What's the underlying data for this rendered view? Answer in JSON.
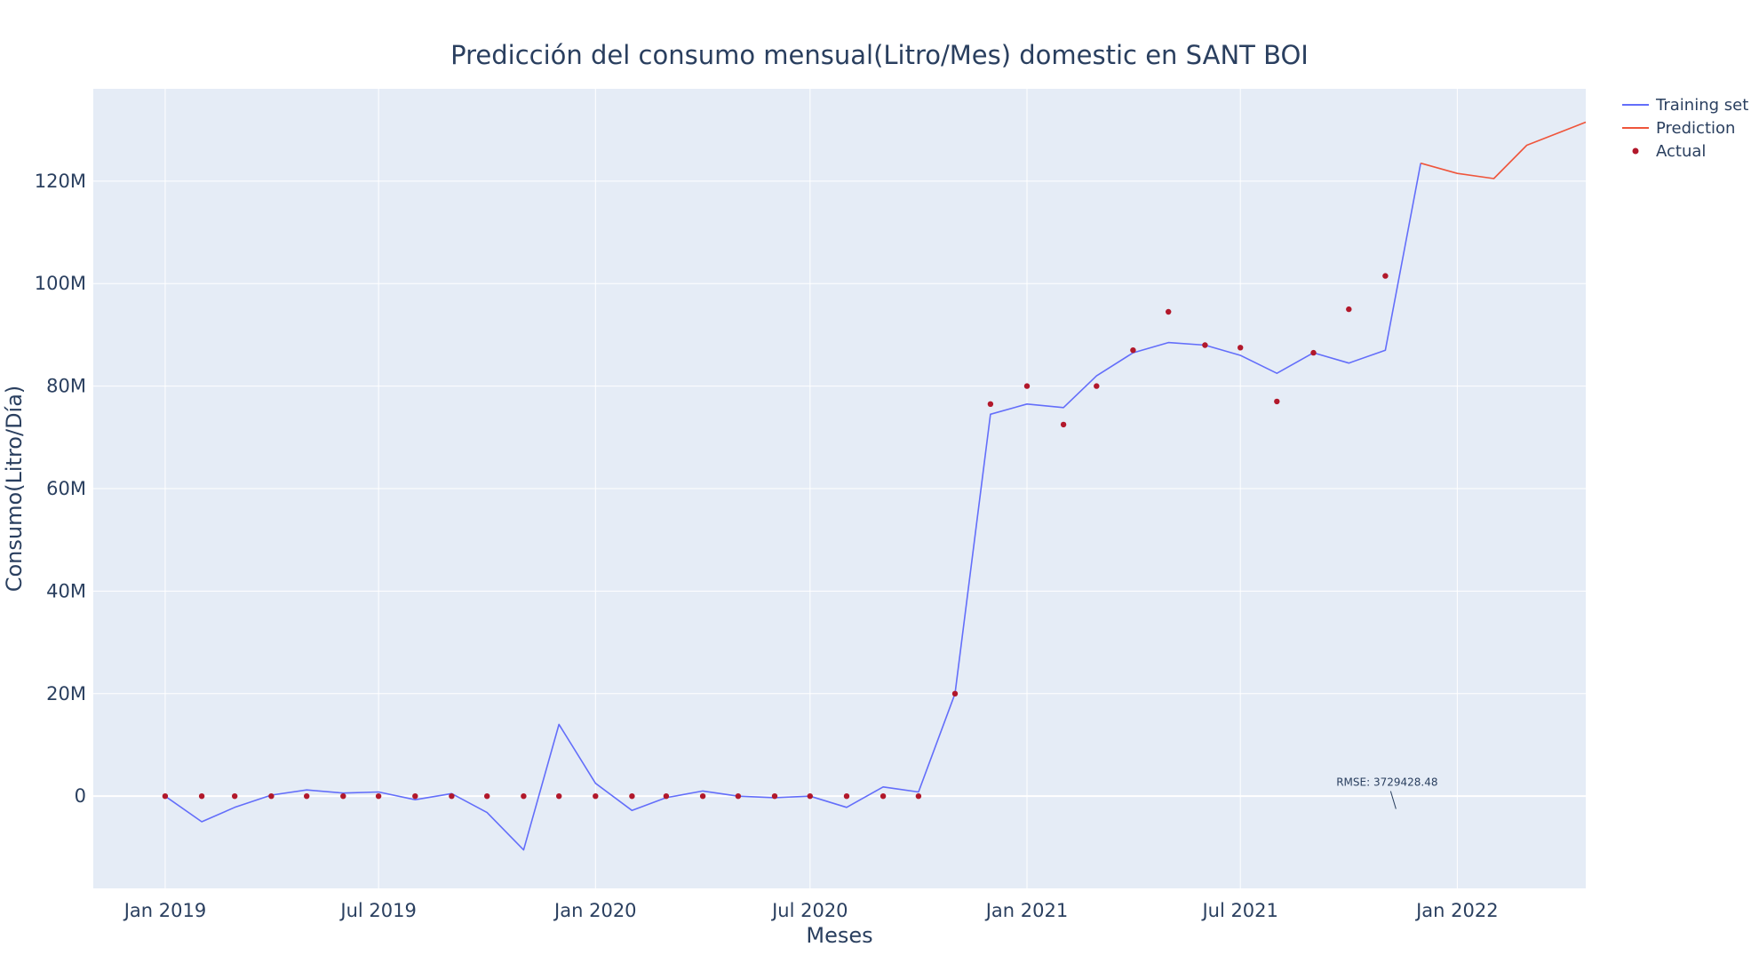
{
  "chart_data": {
    "type": "line",
    "title": "Predicción del consumo mensual(Litro/Mes) domestic en SANT BOI",
    "xlabel": "Meses",
    "ylabel": "Consumo(Litro/Día)",
    "ylim": [
      -18000000,
      138000000
    ],
    "y_ticks": [
      {
        "value": 0,
        "label": "0"
      },
      {
        "value": 20000000,
        "label": "20M"
      },
      {
        "value": 40000000,
        "label": "40M"
      },
      {
        "value": 60000000,
        "label": "60M"
      },
      {
        "value": 80000000,
        "label": "80M"
      },
      {
        "value": 100000000,
        "label": "100M"
      },
      {
        "value": 120000000,
        "label": "120M"
      }
    ],
    "x_ticks": [
      {
        "value": "2019-01-01",
        "label": "Jan 2019"
      },
      {
        "value": "2019-07-01",
        "label": "Jul 2019"
      },
      {
        "value": "2020-01-01",
        "label": "Jan 2020"
      },
      {
        "value": "2020-07-01",
        "label": "Jul 2020"
      },
      {
        "value": "2021-01-01",
        "label": "Jan 2021"
      },
      {
        "value": "2021-07-01",
        "label": "Jul 2021"
      },
      {
        "value": "2022-01-01",
        "label": "Jan 2022"
      }
    ],
    "xlim": [
      "2018-11-01",
      "2022-04-20"
    ],
    "grid": true,
    "legend_position": "top-right",
    "series": [
      {
        "name": "Training set",
        "mode": "lines",
        "color": "#636efa",
        "x": [
          "2019-01-01",
          "2019-02-01",
          "2019-03-01",
          "2019-04-01",
          "2019-05-01",
          "2019-06-01",
          "2019-07-01",
          "2019-08-01",
          "2019-09-01",
          "2019-10-01",
          "2019-11-01",
          "2019-12-01",
          "2020-01-01",
          "2020-02-01",
          "2020-03-01",
          "2020-04-01",
          "2020-05-01",
          "2020-06-01",
          "2020-07-01",
          "2020-08-01",
          "2020-09-01",
          "2020-10-01",
          "2020-11-01",
          "2020-12-01",
          "2021-01-01",
          "2021-02-01",
          "2021-03-01",
          "2021-04-01",
          "2021-05-01",
          "2021-06-01",
          "2021-07-01",
          "2021-08-01",
          "2021-09-01",
          "2021-10-01",
          "2021-11-01",
          "2021-12-01"
        ],
        "y": [
          0,
          -5000000,
          -2200000,
          200000,
          1200000,
          600000,
          800000,
          -700000,
          500000,
          -3200000,
          -10500000,
          14000000,
          2500000,
          -2800000,
          -300000,
          1000000,
          0,
          -300000,
          0,
          -2200000,
          1800000,
          800000,
          20000000,
          74500000,
          76500000,
          75800000,
          82000000,
          86500000,
          88500000,
          88000000,
          86000000,
          82500000,
          86500000,
          84500000,
          87000000,
          123500000
        ]
      },
      {
        "name": "Prediction",
        "mode": "lines",
        "color": "#ef553b",
        "x": [
          "2021-12-01",
          "2022-01-01",
          "2022-02-01",
          "2022-03-01",
          "2022-04-20"
        ],
        "y": [
          123500000,
          121500000,
          120500000,
          127000000,
          131500000
        ]
      },
      {
        "name": "Actual",
        "mode": "markers",
        "color": "#b2182b",
        "x": [
          "2019-01-01",
          "2019-02-01",
          "2019-03-01",
          "2019-04-01",
          "2019-05-01",
          "2019-06-01",
          "2019-07-01",
          "2019-08-01",
          "2019-09-01",
          "2019-10-01",
          "2019-11-01",
          "2019-12-01",
          "2020-01-01",
          "2020-02-01",
          "2020-03-01",
          "2020-04-01",
          "2020-05-01",
          "2020-06-01",
          "2020-07-01",
          "2020-08-01",
          "2020-09-01",
          "2020-10-01",
          "2020-11-01",
          "2020-12-01",
          "2021-01-01",
          "2021-02-01",
          "2021-03-01",
          "2021-04-01",
          "2021-05-01",
          "2021-06-01",
          "2021-07-01",
          "2021-08-01",
          "2021-09-01",
          "2021-10-01",
          "2021-11-01"
        ],
        "y": [
          0,
          0,
          0,
          0,
          0,
          0,
          0,
          0,
          0,
          0,
          0,
          0,
          0,
          0,
          0,
          0,
          0,
          0,
          0,
          0,
          0,
          0,
          20000000,
          76500000,
          80000000,
          72500000,
          80000000,
          87000000,
          94500000,
          88000000,
          87500000,
          77000000,
          86500000,
          95000000,
          101500000
        ]
      }
    ],
    "annotations": [
      {
        "text": "RMSE: 3729428.48",
        "x": "2021-11-10",
        "y": -2500000
      }
    ]
  },
  "colors": {
    "plot_background": "#e5ecf6",
    "grid": "#ffffff",
    "text": "#2a3f5f"
  }
}
